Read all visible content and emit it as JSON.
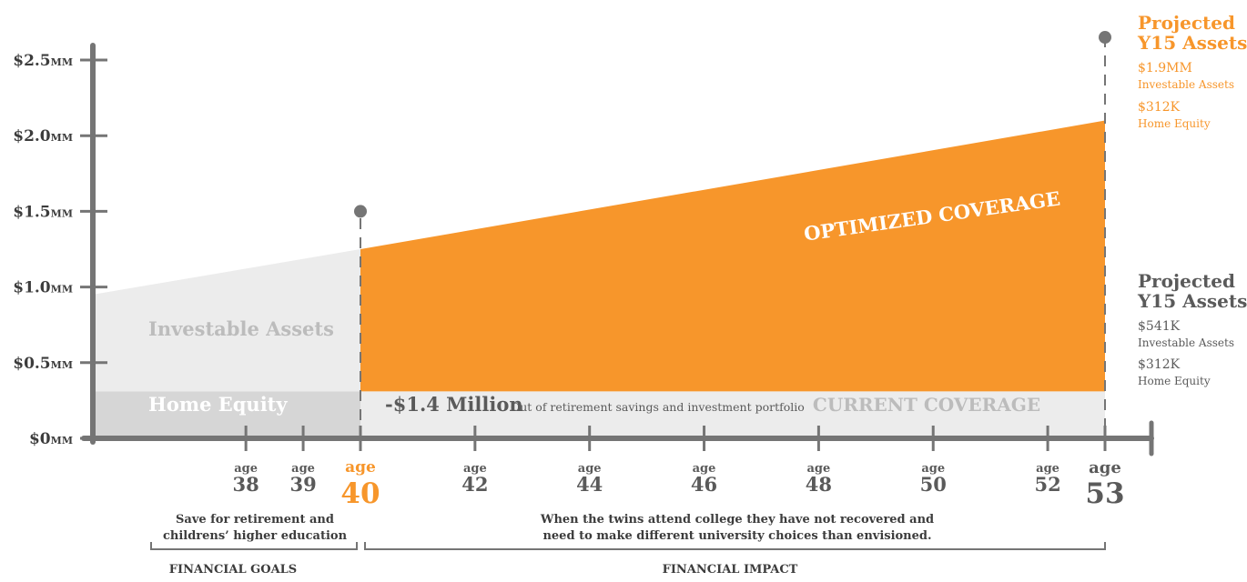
{
  "chart_data": {
    "type": "area",
    "y_ticks": [
      {
        "value": 0,
        "label": "$0MM"
      },
      {
        "value": 0.5,
        "label": "$0.5MM"
      },
      {
        "value": 1.0,
        "label": "$1.0MM"
      },
      {
        "value": 1.5,
        "label": "$1.5MM"
      },
      {
        "value": 2.0,
        "label": "$2.0MM"
      },
      {
        "value": 2.5,
        "label": "$2.5MM"
      }
    ],
    "ylim": [
      0,
      2.5
    ],
    "xlim": [
      37,
      54
    ],
    "x_ticks": [
      {
        "value": 38,
        "age": "age",
        "num": "38",
        "style": "small"
      },
      {
        "value": 39,
        "age": "age",
        "num": "39",
        "style": "small"
      },
      {
        "value": 40,
        "age": "age",
        "num": "40",
        "style": "accent"
      },
      {
        "value": 42,
        "age": "age",
        "num": "42",
        "style": "small"
      },
      {
        "value": 44,
        "age": "age",
        "num": "44",
        "style": "small"
      },
      {
        "value": 46,
        "age": "age",
        "num": "46",
        "style": "small"
      },
      {
        "value": 48,
        "age": "age",
        "num": "48",
        "style": "small"
      },
      {
        "value": 50,
        "age": "age",
        "num": "50",
        "style": "small"
      },
      {
        "value": 52,
        "age": "age",
        "num": "52",
        "style": "small"
      },
      {
        "value": 53,
        "age": "age",
        "num": "53",
        "style": "large"
      }
    ],
    "series": [
      {
        "name": "Home Equity",
        "x": [
          37,
          40
        ],
        "y": [
          0.31,
          0.31
        ]
      },
      {
        "name": "Investable Assets",
        "x": [
          37,
          40
        ],
        "y": [
          0.95,
          1.25
        ]
      },
      {
        "name": "CURRENT COVERAGE",
        "x": [
          40,
          53
        ],
        "y": [
          0.31,
          0.31
        ]
      },
      {
        "name": "OPTIMIZED COVERAGE",
        "x": [
          40,
          53
        ],
        "y": [
          1.25,
          2.1
        ]
      }
    ],
    "markers": [
      {
        "x": 40,
        "y": 1.5
      },
      {
        "x": 53,
        "y": 2.65
      }
    ],
    "area_labels": {
      "investable_assets": "Investable Assets",
      "home_equity": "Home Equity",
      "optimized_coverage": "OPTIMIZED COVERAGE",
      "current_coverage": "CURRENT COVERAGE",
      "loss_amount": "-$1.4 Million",
      "loss_note": "Out of retirement savings and investment portfolio"
    },
    "projection_optimized": {
      "title_line1": "Projected",
      "title_line2": "Y15 Assets",
      "investable_value": "$1.9MM",
      "investable_label": "Investable Assets",
      "equity_value": "$312K",
      "equity_label": "Home Equity"
    },
    "projection_current": {
      "title_line1": "Projected",
      "title_line2": "Y15 Assets",
      "investable_value": "$541K",
      "investable_label": "Investable Assets",
      "equity_value": "$312K",
      "equity_label": "Home Equity"
    },
    "bottom": {
      "goals_text_line1": "Save for retirement and",
      "goals_text_line2": "childrens’ higher education",
      "goals_label": "FINANCIAL GOALS",
      "impact_text_line1": "When the twins attend college they have not recovered and",
      "impact_text_line2": "need to make different university choices than envisioned.",
      "impact_label": "FINANCIAL IMPACT"
    }
  },
  "colors": {
    "orange": "#f7962b",
    "axis": "#757575",
    "investable_fill": "#ececec",
    "home_equity_fill": "#d6d6d6",
    "current_fill": "#ececec",
    "label_gray": "#bcbcbc",
    "text_dark": "#5a5a5a"
  }
}
